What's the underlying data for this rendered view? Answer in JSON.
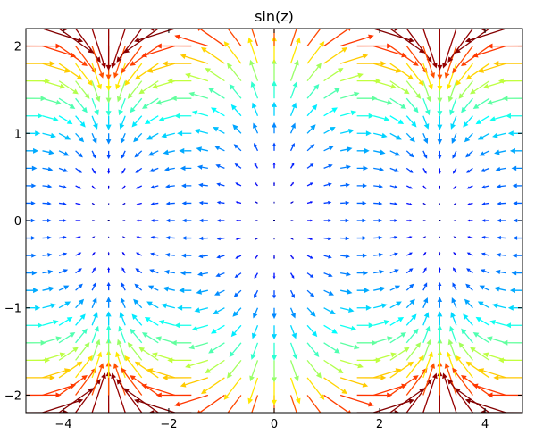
{
  "chart_data": {
    "type": "quiver",
    "title": "sin(z)",
    "function": "sin(z)",
    "xlabel": "",
    "ylabel": "",
    "xlim": [
      -4.71,
      4.71
    ],
    "ylim": [
      -2.2,
      2.2
    ],
    "x_ticks": [
      -4,
      -2,
      0,
      2,
      4
    ],
    "y_ticks": [
      -2,
      -1,
      0,
      1,
      2
    ],
    "x_tick_labels": [
      "−4",
      "−2",
      "0",
      "2",
      "4"
    ],
    "y_tick_labels": [
      "−2",
      "−1",
      "0",
      "1",
      "2"
    ],
    "grid": {
      "x": {
        "start": -4.71,
        "step": 0.314,
        "count": 31
      },
      "y": {
        "start": -2.2,
        "step": 0.2,
        "count": 23
      }
    },
    "vector_field": "u = sin(x)·cosh(y), v = cos(x)·sinh(y)",
    "colormap": "jet",
    "color_by": "magnitude",
    "grid_lines": false,
    "legend": "none"
  }
}
